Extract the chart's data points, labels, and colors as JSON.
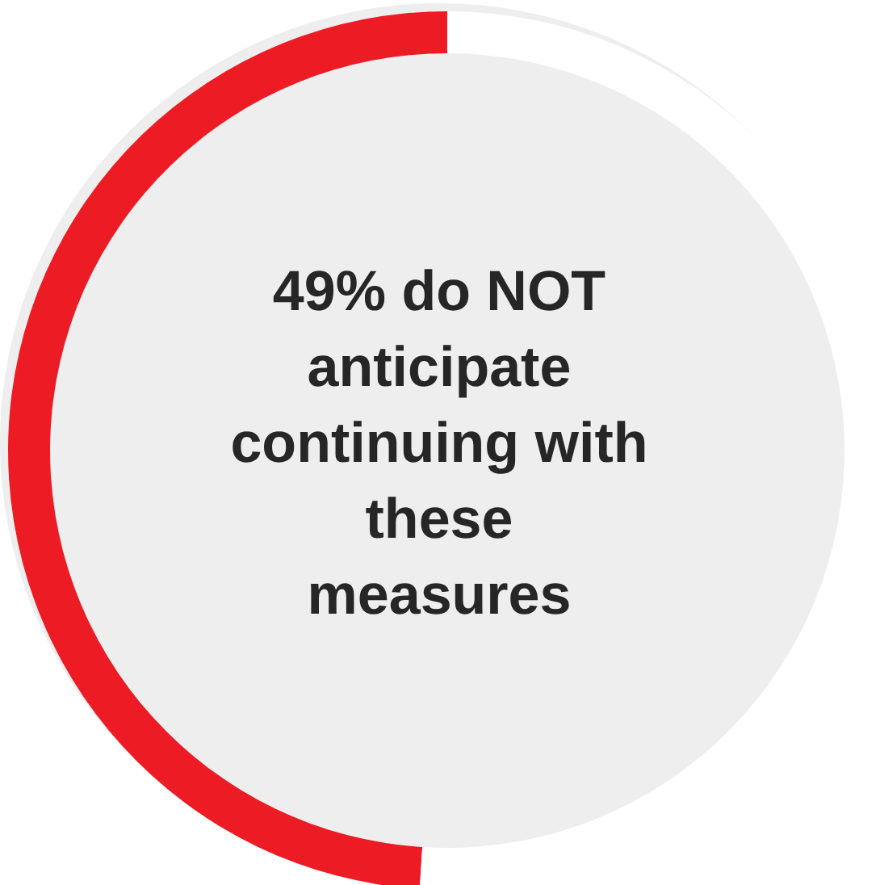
{
  "chart_data": {
    "type": "donut",
    "categories": [
      null,
      null
    ],
    "values": [
      49,
      51
    ],
    "colors": [
      "#ed1c24",
      "#ffffff"
    ],
    "annotations": [
      "49% do NOT anticipate continuing with these measures"
    ]
  }
}
